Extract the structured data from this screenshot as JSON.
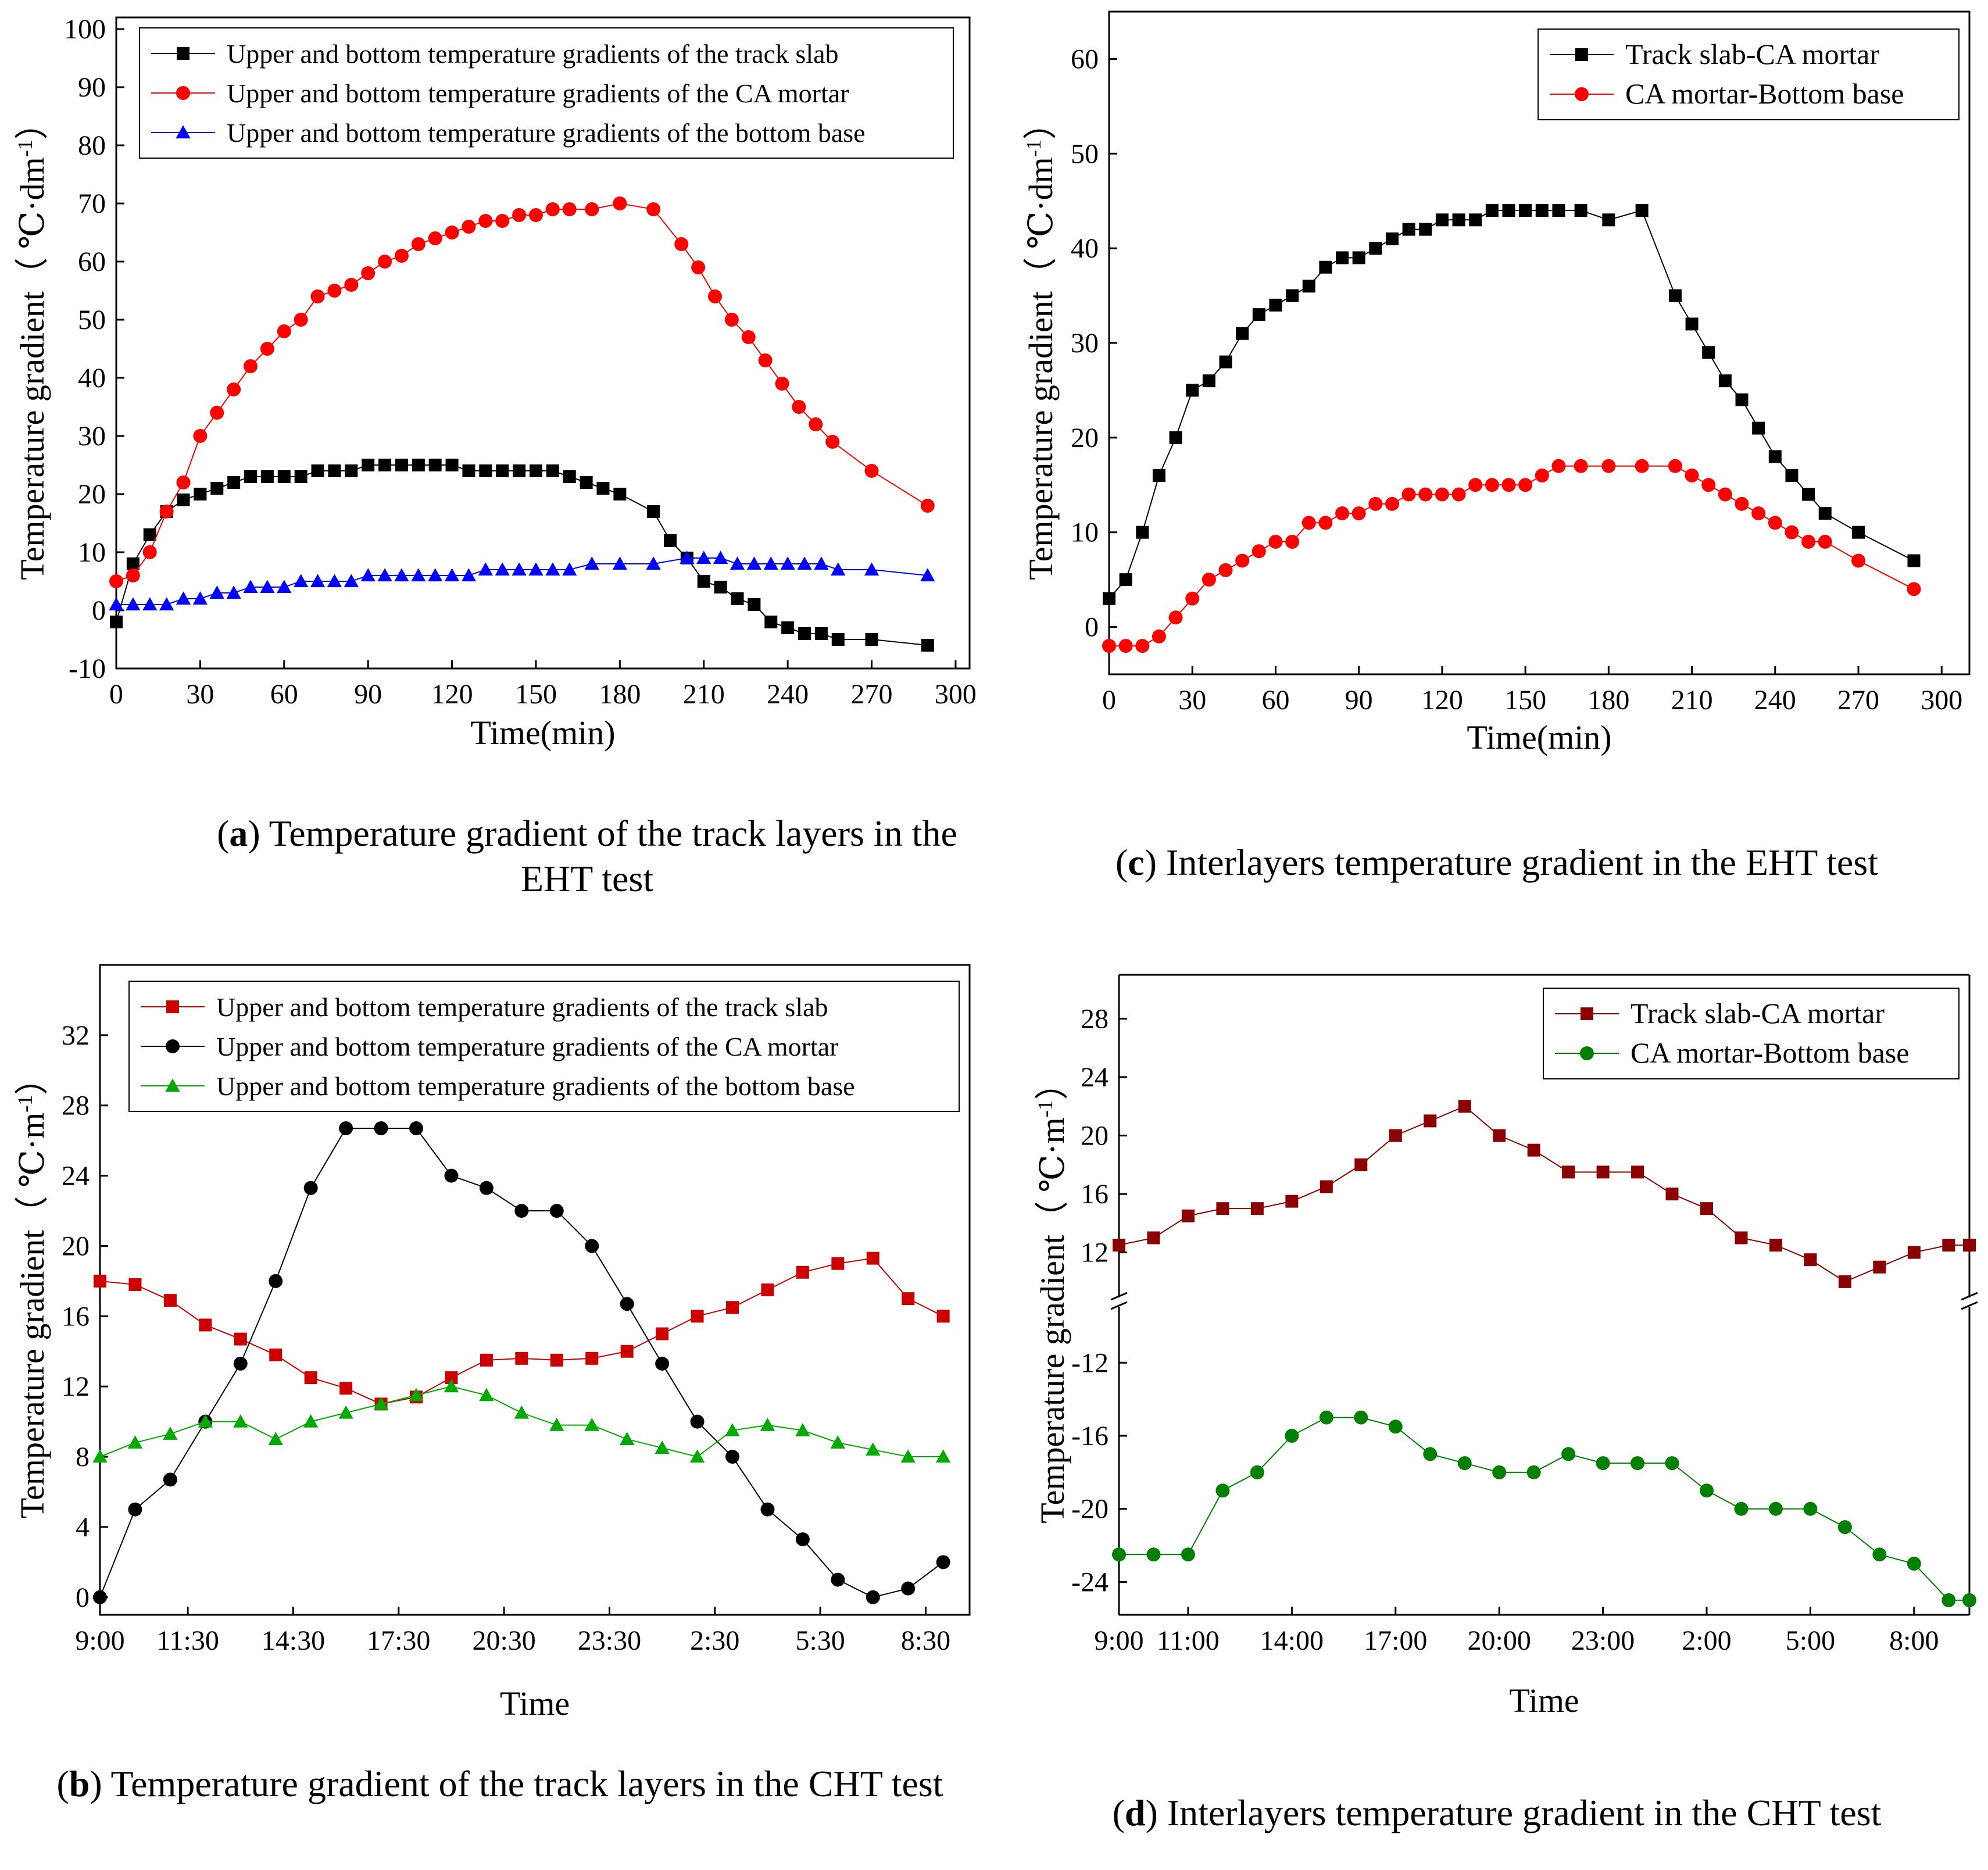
{
  "chart_data": [
    {
      "id": "a",
      "type": "line",
      "xlabel": "Time(min)",
      "ylabel": "Temperature gradient",
      "yunit_base": "℃·dm",
      "yunit_exp": "-1",
      "xlim": [
        0,
        305
      ],
      "ylim": [
        -10,
        102
      ],
      "xticks": [
        "0",
        "30",
        "60",
        "90",
        "120",
        "150",
        "180",
        "210",
        "240",
        "270",
        "300"
      ],
      "xtick_values": [
        0,
        30,
        60,
        90,
        120,
        150,
        180,
        210,
        240,
        270,
        300
      ],
      "yticks": [
        "-10",
        "0",
        "10",
        "20",
        "30",
        "40",
        "50",
        "60",
        "70",
        "80",
        "90",
        "100"
      ],
      "ytick_values": [
        -10,
        0,
        10,
        20,
        30,
        40,
        50,
        60,
        70,
        80,
        90,
        100
      ],
      "caption_letter": "a",
      "caption_text": " Temperature gradient of the track layers in the EHT test",
      "series": [
        {
          "name": "Upper and bottom temperature gradients of the track slab",
          "color": "#000000",
          "marker": "square",
          "x": [
            0,
            6,
            12,
            18,
            24,
            30,
            36,
            42,
            48,
            54,
            60,
            66,
            72,
            78,
            84,
            90,
            96,
            102,
            108,
            114,
            120,
            126,
            132,
            138,
            144,
            150,
            156,
            162,
            168,
            174,
            180,
            192,
            198,
            204,
            210,
            216,
            222,
            228,
            234,
            240,
            246,
            252,
            258,
            270,
            290
          ],
          "y": [
            -2,
            8,
            13,
            17,
            19,
            20,
            21,
            22,
            23,
            23,
            23,
            23,
            24,
            24,
            24,
            25,
            25,
            25,
            25,
            25,
            25,
            24,
            24,
            24,
            24,
            24,
            24,
            23,
            22,
            21,
            20,
            17,
            12,
            9,
            5,
            4,
            2,
            1,
            -2,
            -3,
            -4,
            -4,
            -5,
            -5,
            -6
          ]
        },
        {
          "name": "Upper and bottom temperature gradients of the CA mortar",
          "color": "#ff0000",
          "marker": "circle",
          "x": [
            0,
            6,
            12,
            18,
            24,
            30,
            36,
            42,
            48,
            54,
            60,
            66,
            72,
            78,
            84,
            90,
            96,
            102,
            108,
            114,
            120,
            126,
            132,
            138,
            144,
            150,
            156,
            162,
            170,
            180,
            192,
            202,
            208,
            214,
            220,
            226,
            232,
            238,
            244,
            250,
            256,
            270,
            290
          ],
          "y": [
            5,
            6,
            10,
            17,
            22,
            30,
            34,
            38,
            42,
            45,
            48,
            50,
            54,
            55,
            56,
            58,
            60,
            61,
            63,
            64,
            65,
            66,
            67,
            67,
            68,
            68,
            69,
            69,
            69,
            70,
            69,
            63,
            59,
            54,
            50,
            47,
            43,
            39,
            35,
            32,
            29,
            24,
            18
          ]
        },
        {
          "name": "Upper and bottom temperature gradients of the bottom base",
          "color": "#0000ff",
          "marker": "triangle",
          "x": [
            0,
            6,
            12,
            18,
            24,
            30,
            36,
            42,
            48,
            54,
            60,
            66,
            72,
            78,
            84,
            90,
            96,
            102,
            108,
            114,
            120,
            126,
            132,
            138,
            144,
            150,
            156,
            162,
            170,
            180,
            192,
            204,
            210,
            216,
            222,
            228,
            234,
            240,
            246,
            252,
            258,
            270,
            290
          ],
          "y": [
            1,
            1,
            1,
            1,
            2,
            2,
            3,
            3,
            4,
            4,
            4,
            5,
            5,
            5,
            5,
            6,
            6,
            6,
            6,
            6,
            6,
            6,
            7,
            7,
            7,
            7,
            7,
            7,
            8,
            8,
            8,
            9,
            9,
            9,
            8,
            8,
            8,
            8,
            8,
            8,
            7,
            7,
            6
          ]
        }
      ]
    },
    {
      "id": "c",
      "type": "line",
      "xlabel": "Time(min)",
      "ylabel": "Temperature gradient",
      "yunit_base": "℃·dm",
      "yunit_exp": "-1",
      "xlim": [
        0,
        310
      ],
      "ylim": [
        -5,
        65
      ],
      "xticks": [
        "0",
        "30",
        "60",
        "90",
        "120",
        "150",
        "180",
        "210",
        "240",
        "270",
        "300"
      ],
      "xtick_values": [
        0,
        30,
        60,
        90,
        120,
        150,
        180,
        210,
        240,
        270,
        300
      ],
      "yticks": [
        "0",
        "10",
        "20",
        "30",
        "40",
        "50",
        "60"
      ],
      "ytick_values": [
        0,
        10,
        20,
        30,
        40,
        50,
        60
      ],
      "caption_letter": "c",
      "caption_text": " Interlayers temperature gradient in the EHT test",
      "series": [
        {
          "name": "Track slab-CA mortar",
          "color": "#000000",
          "marker": "square",
          "x": [
            0,
            6,
            12,
            18,
            24,
            30,
            36,
            42,
            48,
            54,
            60,
            66,
            72,
            78,
            84,
            90,
            96,
            102,
            108,
            114,
            120,
            126,
            132,
            138,
            144,
            150,
            156,
            162,
            170,
            180,
            192,
            204,
            210,
            216,
            222,
            228,
            234,
            240,
            246,
            252,
            258,
            270,
            290
          ],
          "y": [
            3,
            5,
            10,
            16,
            20,
            25,
            26,
            28,
            31,
            33,
            34,
            35,
            36,
            38,
            39,
            39,
            40,
            41,
            42,
            42,
            43,
            43,
            43,
            44,
            44,
            44,
            44,
            44,
            44,
            43,
            44,
            35,
            32,
            29,
            26,
            24,
            21,
            18,
            16,
            14,
            12,
            10,
            7
          ]
        },
        {
          "name": "CA mortar-Bottom base",
          "color": "#ff0000",
          "marker": "circle",
          "x": [
            0,
            6,
            12,
            18,
            24,
            30,
            36,
            42,
            48,
            54,
            60,
            66,
            72,
            78,
            84,
            90,
            96,
            102,
            108,
            114,
            120,
            126,
            132,
            138,
            144,
            150,
            156,
            162,
            170,
            180,
            192,
            204,
            210,
            216,
            222,
            228,
            234,
            240,
            246,
            252,
            258,
            270,
            290
          ],
          "y": [
            -2,
            -2,
            -2,
            -1,
            1,
            3,
            5,
            6,
            7,
            8,
            9,
            9,
            11,
            11,
            12,
            12,
            13,
            13,
            14,
            14,
            14,
            14,
            15,
            15,
            15,
            15,
            16,
            17,
            17,
            17,
            17,
            17,
            16,
            15,
            14,
            13,
            12,
            11,
            10,
            9,
            9,
            7,
            4
          ]
        }
      ]
    },
    {
      "id": "b",
      "type": "line",
      "xlabel": "Time",
      "ylabel": "Temperature gradient",
      "yunit_base": "℃·m",
      "yunit_exp": "-1",
      "xlim": [
        0,
        24.75
      ],
      "ylim": [
        -1,
        36
      ],
      "xticks": [
        "9:00",
        "11:30",
        "14:30",
        "17:30",
        "20:30",
        "23:30",
        "2:30",
        "5:30",
        "8:30"
      ],
      "xtick_values": [
        0,
        2.5,
        5.5,
        8.5,
        11.5,
        14.5,
        17.5,
        20.5,
        23.5
      ],
      "yticks": [
        "0",
        "4",
        "8",
        "12",
        "16",
        "20",
        "24",
        "28",
        "32"
      ],
      "ytick_values": [
        0,
        4,
        8,
        12,
        16,
        20,
        24,
        28,
        32
      ],
      "caption_letter": "b",
      "caption_text": " Temperature gradient of the track layers in the CHT test",
      "series": [
        {
          "name": "Upper and bottom temperature gradients of the track slab",
          "color": "#cc0000",
          "marker": "square",
          "x": [
            0,
            1,
            2,
            3,
            4,
            5,
            6,
            7,
            8,
            9,
            10,
            11,
            12,
            13,
            14,
            15,
            16,
            17,
            18,
            19,
            20,
            21,
            22,
            23,
            24
          ],
          "y": [
            18,
            17.8,
            16.9,
            15.5,
            14.7,
            13.8,
            12.5,
            11.9,
            11,
            11.4,
            12.5,
            13.5,
            13.6,
            13.5,
            13.6,
            14,
            15,
            16,
            16.5,
            17.5,
            18.5,
            19,
            19.3,
            17,
            16
          ]
        },
        {
          "name": "Upper and bottom temperature gradients of the CA mortar",
          "color": "#000000",
          "marker": "circle",
          "x": [
            0,
            1,
            2,
            3,
            4,
            5,
            6,
            7,
            8,
            9,
            10,
            11,
            12,
            13,
            14,
            15,
            16,
            17,
            18,
            19,
            20,
            21,
            22,
            23,
            24
          ],
          "y": [
            0,
            5,
            6.7,
            10,
            13.3,
            18,
            23.3,
            26.7,
            26.7,
            26.7,
            24,
            23.3,
            22,
            22,
            20,
            16.7,
            13.3,
            10,
            8,
            5,
            3.3,
            1,
            0,
            0.5,
            2
          ]
        },
        {
          "name": "Upper and bottom temperature gradients of the bottom base",
          "color": "#00aa00",
          "marker": "triangle",
          "x": [
            0,
            1,
            2,
            3,
            4,
            5,
            6,
            7,
            8,
            9,
            10,
            11,
            12,
            13,
            14,
            15,
            16,
            17,
            18,
            19,
            20,
            21,
            22,
            23,
            24
          ],
          "y": [
            8,
            8.8,
            9.3,
            10,
            10,
            9,
            10,
            10.5,
            11,
            11.5,
            12,
            11.5,
            10.5,
            9.8,
            9.8,
            9,
            8.5,
            8,
            9.5,
            9.8,
            9.5,
            8.8,
            8.4,
            8,
            8
          ]
        }
      ]
    },
    {
      "id": "d",
      "type": "line",
      "xlabel": "Time",
      "ylabel": "Temperature gradient",
      "yunit_base": "℃·m",
      "yunit_exp": "-1",
      "xlim": [
        0,
        24.6
      ],
      "broken_axis": true,
      "ylim_upper": [
        9,
        31
      ],
      "ylim_lower": [
        -25.8,
        -9
      ],
      "xticks": [
        "9:00",
        "11:00",
        "14:00",
        "17:00",
        "20:00",
        "23:00",
        "2:00",
        "5:00",
        "8:00"
      ],
      "xtick_values": [
        0,
        2,
        5,
        8,
        11,
        14,
        17,
        20,
        23
      ],
      "yticks_upper": [
        "12",
        "16",
        "20",
        "24",
        "28"
      ],
      "ytick_values_upper": [
        12,
        16,
        20,
        24,
        28
      ],
      "yticks_lower": [
        "-24",
        "-20",
        "-16",
        "-12"
      ],
      "ytick_values_lower": [
        -24,
        -20,
        -16,
        -12
      ],
      "caption_letter": "d",
      "caption_text": " Interlayers temperature gradient in the CHT test",
      "series": [
        {
          "name": "Track slab-CA mortar",
          "color": "#8b0000",
          "marker": "square",
          "x": [
            0,
            1,
            2,
            3,
            4,
            5,
            6,
            7,
            8,
            9,
            10,
            11,
            12,
            13,
            14,
            15,
            16,
            17,
            18,
            19,
            20,
            21,
            22,
            23,
            24,
            24.6
          ],
          "y": [
            12.5,
            13,
            14.5,
            15,
            15,
            15.5,
            16.5,
            18,
            20,
            21,
            22,
            20,
            19,
            17.5,
            17.5,
            17.5,
            16,
            15,
            13,
            12.5,
            11.5,
            10,
            11,
            12,
            12.5,
            12.5
          ]
        },
        {
          "name": "CA mortar-Bottom base",
          "color": "#008000",
          "marker": "circle",
          "x": [
            0,
            1,
            2,
            3,
            4,
            5,
            6,
            7,
            8,
            9,
            10,
            11,
            12,
            13,
            14,
            15,
            16,
            17,
            18,
            19,
            20,
            21,
            22,
            23,
            24,
            24.6
          ],
          "y": [
            -22.5,
            -22.5,
            -22.5,
            -19,
            -18,
            -16,
            -15,
            -15,
            -15.5,
            -17,
            -17.5,
            -18,
            -18,
            -17,
            -17.5,
            -17.5,
            -17.5,
            -19,
            -20,
            -20,
            -20,
            -21,
            -22.5,
            -23,
            -25,
            -25
          ]
        }
      ]
    }
  ]
}
